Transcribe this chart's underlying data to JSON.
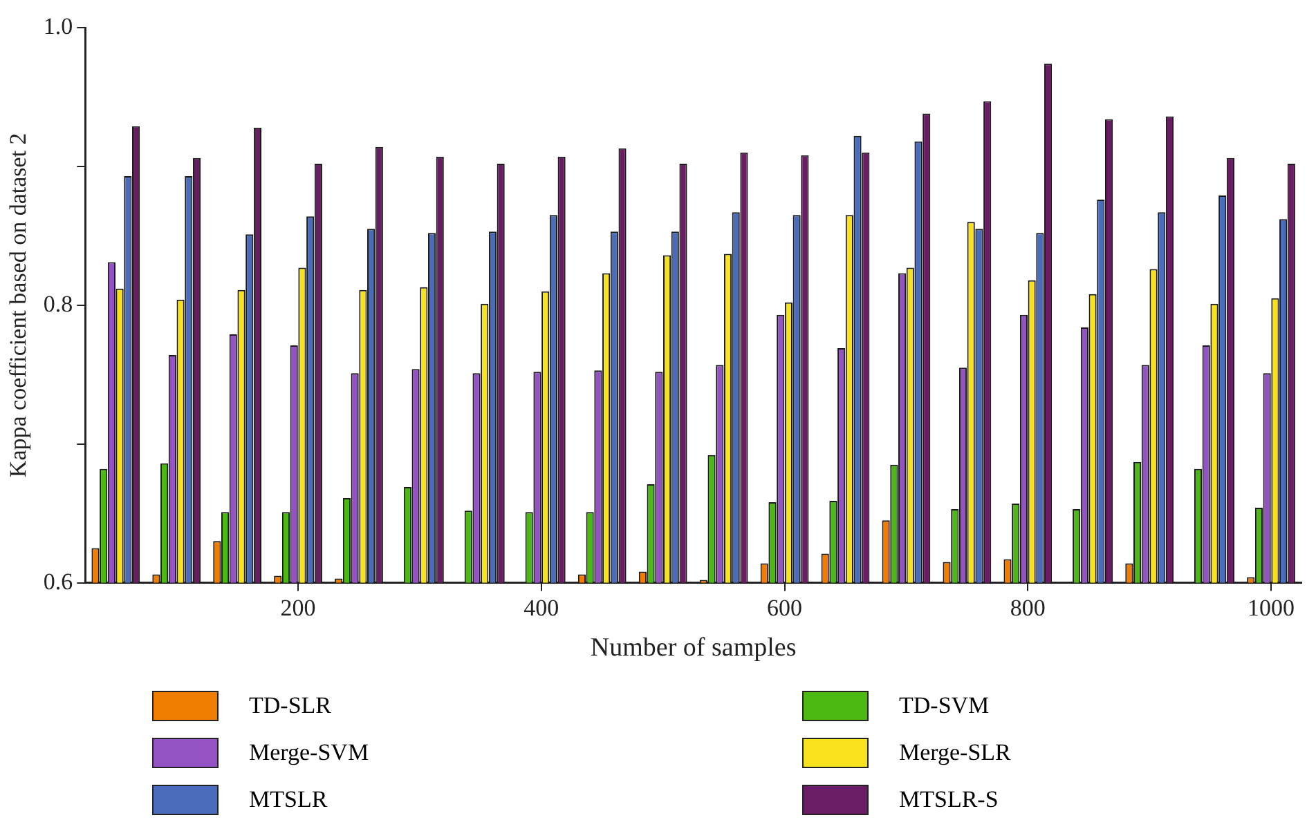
{
  "chart_data": {
    "type": "bar",
    "xlabel": "Number of samples",
    "ylabel": "Kappa coefficient based on dataset 2",
    "categories": [
      null,
      null,
      null,
      "200",
      null,
      null,
      null,
      "400",
      null,
      null,
      null,
      "600",
      null,
      null,
      null,
      "800",
      null,
      null,
      null,
      "1000"
    ],
    "series": [
      {
        "name": "TD-SLR",
        "color": "#f07c00",
        "values": [
          0.625,
          0.606,
          0.63,
          0.605,
          0.603,
          null,
          null,
          null,
          0.606,
          0.608,
          0.602,
          0.614,
          0.621,
          0.645,
          0.615,
          0.617,
          null,
          0.614,
          null,
          0.604
        ]
      },
      {
        "name": "TD-SVM",
        "color": "#4cb814",
        "values": [
          0.682,
          0.686,
          0.651,
          0.651,
          0.661,
          0.669,
          0.652,
          0.651,
          0.651,
          0.671,
          0.692,
          0.658,
          0.659,
          0.685,
          0.653,
          0.657,
          0.653,
          0.687,
          0.682,
          0.654
        ]
      },
      {
        "name": "Merge-SVM",
        "color": "#9552c4",
        "values": [
          0.831,
          0.764,
          0.779,
          0.771,
          0.751,
          0.754,
          0.751,
          0.752,
          0.753,
          0.752,
          0.757,
          0.793,
          0.769,
          0.823,
          0.755,
          0.793,
          0.784,
          0.757,
          0.771,
          0.751
        ]
      },
      {
        "name": "Merge-SLR",
        "color": "#f8e21e",
        "values": [
          0.812,
          0.804,
          0.811,
          0.827,
          0.811,
          0.813,
          0.801,
          0.81,
          0.823,
          0.836,
          0.837,
          0.802,
          0.865,
          0.827,
          0.86,
          0.818,
          0.808,
          0.826,
          0.801,
          0.805
        ]
      },
      {
        "name": "MTSLR",
        "color": "#4a6cbc",
        "values": [
          0.893,
          0.893,
          0.851,
          0.864,
          0.855,
          0.852,
          0.853,
          0.865,
          0.853,
          0.853,
          0.867,
          0.865,
          0.922,
          0.918,
          0.855,
          0.852,
          0.876,
          0.867,
          0.879,
          0.862
        ]
      },
      {
        "name": "MTSLR-S",
        "color": "#6a1c64",
        "values": [
          0.929,
          0.906,
          0.928,
          0.902,
          0.914,
          0.907,
          0.902,
          0.907,
          0.913,
          0.902,
          0.91,
          0.908,
          0.91,
          0.938,
          0.947,
          0.974,
          0.934,
          0.936,
          0.906,
          0.902
        ]
      }
    ],
    "ylim": [
      0.6,
      1.0
    ],
    "yticks": [
      0.6,
      {
        "value": 0.7,
        "label": null
      },
      0.8,
      {
        "value": 0.9,
        "label": null
      },
      {
        "value": 1,
        "label": "1.0"
      }
    ],
    "grid": false,
    "legend": "bottom"
  }
}
